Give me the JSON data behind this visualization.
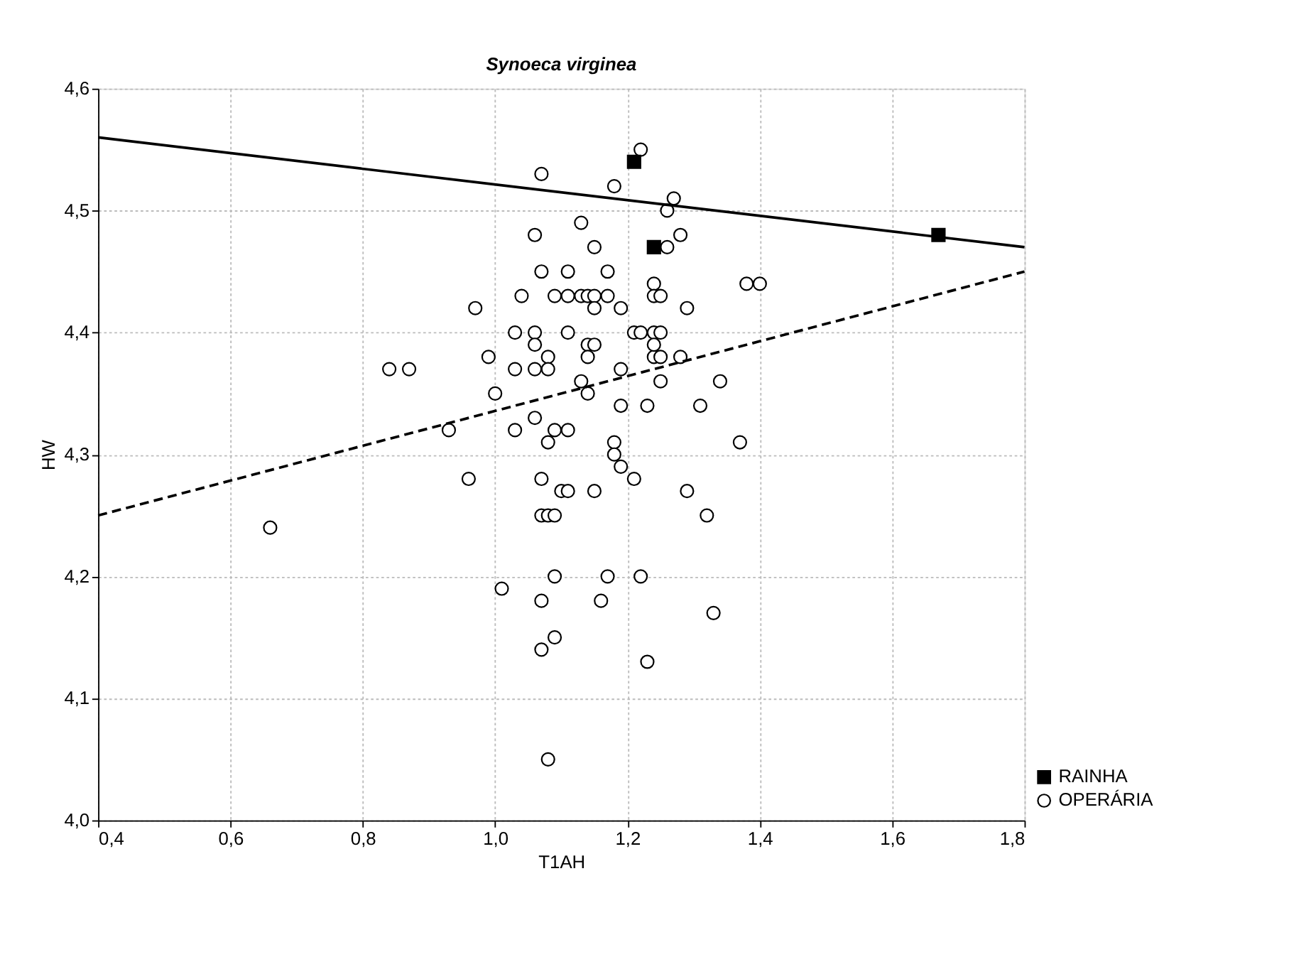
{
  "chart_data": {
    "type": "scatter",
    "title": "Synoeca virginea",
    "xlabel": "T1AH",
    "ylabel": "HW",
    "xlim": [
      0.4,
      1.8
    ],
    "ylim": [
      4.0,
      4.6
    ],
    "xticks": [
      {
        "value": 0.4,
        "label": "0,4"
      },
      {
        "value": 0.6,
        "label": "0,6"
      },
      {
        "value": 0.8,
        "label": "0,8"
      },
      {
        "value": 1.0,
        "label": "1,0"
      },
      {
        "value": 1.2,
        "label": "1,2"
      },
      {
        "value": 1.4,
        "label": "1,4"
      },
      {
        "value": 1.6,
        "label": "1,6"
      },
      {
        "value": 1.8,
        "label": "1,8"
      }
    ],
    "yticks": [
      {
        "value": 4.0,
        "label": "4,0"
      },
      {
        "value": 4.1,
        "label": "4,1"
      },
      {
        "value": 4.2,
        "label": "4,2"
      },
      {
        "value": 4.3,
        "label": "4,3"
      },
      {
        "value": 4.4,
        "label": "4,4"
      },
      {
        "value": 4.5,
        "label": "4,5"
      },
      {
        "value": 4.6,
        "label": "4,6"
      }
    ],
    "grid": true,
    "legend": "bottom right",
    "series": [
      {
        "name": "RAINHA",
        "color": "#000000",
        "marker": "square",
        "x": [
          1.21,
          1.24,
          1.67
        ],
        "values": [
          4.54,
          4.47,
          4.48
        ]
      },
      {
        "name": "OPERÁRIA",
        "color": "#000000",
        "marker": "circle",
        "x": [
          0.66,
          0.84,
          0.87,
          0.93,
          0.96,
          0.97,
          0.99,
          1.0,
          1.01,
          1.03,
          1.03,
          1.03,
          1.04,
          1.06,
          1.06,
          1.06,
          1.06,
          1.06,
          1.07,
          1.07,
          1.07,
          1.07,
          1.07,
          1.07,
          1.08,
          1.08,
          1.08,
          1.08,
          1.08,
          1.09,
          1.09,
          1.09,
          1.09,
          1.09,
          1.1,
          1.11,
          1.11,
          1.11,
          1.11,
          1.11,
          1.13,
          1.13,
          1.13,
          1.14,
          1.14,
          1.14,
          1.14,
          1.15,
          1.15,
          1.15,
          1.15,
          1.15,
          1.16,
          1.17,
          1.17,
          1.17,
          1.18,
          1.18,
          1.18,
          1.19,
          1.19,
          1.19,
          1.19,
          1.21,
          1.21,
          1.22,
          1.22,
          1.22,
          1.23,
          1.23,
          1.24,
          1.24,
          1.24,
          1.24,
          1.24,
          1.25,
          1.25,
          1.25,
          1.25,
          1.26,
          1.26,
          1.27,
          1.28,
          1.28,
          1.29,
          1.29,
          1.31,
          1.32,
          1.33,
          1.34,
          1.37,
          1.38,
          1.4
        ],
        "values": [
          4.24,
          4.37,
          4.37,
          4.32,
          4.28,
          4.42,
          4.38,
          4.35,
          4.19,
          4.4,
          4.37,
          4.32,
          4.43,
          4.48,
          4.4,
          4.39,
          4.37,
          4.33,
          4.53,
          4.45,
          4.28,
          4.25,
          4.18,
          4.14,
          4.38,
          4.37,
          4.31,
          4.25,
          4.05,
          4.43,
          4.32,
          4.25,
          4.2,
          4.15,
          4.27,
          4.45,
          4.43,
          4.4,
          4.32,
          4.27,
          4.49,
          4.43,
          4.36,
          4.43,
          4.39,
          4.38,
          4.35,
          4.47,
          4.43,
          4.42,
          4.39,
          4.27,
          4.18,
          4.45,
          4.43,
          4.2,
          4.31,
          4.3,
          4.52,
          4.42,
          4.37,
          4.34,
          4.29,
          4.4,
          4.28,
          4.55,
          4.2,
          4.4,
          4.34,
          4.13,
          4.44,
          4.43,
          4.4,
          4.38,
          4.39,
          4.38,
          4.36,
          4.43,
          4.4,
          4.5,
          4.47,
          4.51,
          4.48,
          4.38,
          4.42,
          4.27,
          4.34,
          4.25,
          4.17,
          4.36,
          4.31,
          4.44,
          4.44
        ]
      },
      {
        "type": "line",
        "color": "#000000",
        "line_style": "solid",
        "x": [
          0.4,
          1.8
        ],
        "values": [
          4.56,
          4.47
        ]
      },
      {
        "type": "line",
        "color": "#000000",
        "line_style": "dashed",
        "x": [
          0.4,
          1.8
        ],
        "values": [
          4.25,
          4.45
        ]
      }
    ]
  }
}
